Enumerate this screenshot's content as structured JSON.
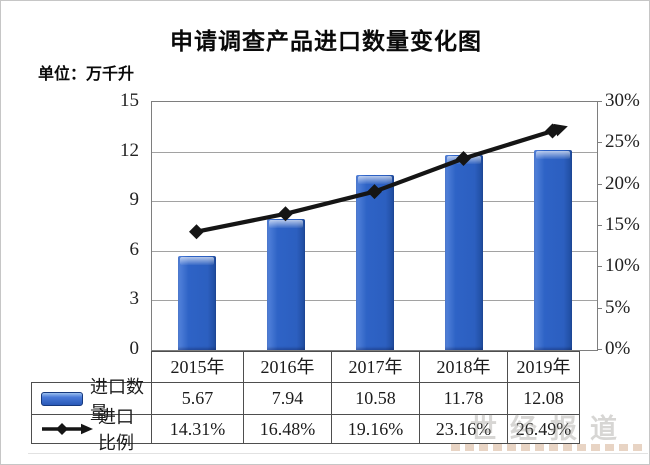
{
  "unit_label": "单位：万千升",
  "watermark_text": "世经报道",
  "chart_data": {
    "type": "combo-bar-line",
    "title": "申请调查产品进口数量变化图",
    "unit": "万千升",
    "categories": [
      "2015年",
      "2016年",
      "2017年",
      "2018年",
      "2019年"
    ],
    "series": [
      {
        "name": "进口数量",
        "type": "bar",
        "axis": "left",
        "values": [
          5.67,
          7.94,
          10.58,
          11.78,
          12.08
        ]
      },
      {
        "name": "进口比例",
        "type": "line",
        "axis": "right",
        "unit": "%",
        "values": [
          14.31,
          16.48,
          19.16,
          23.16,
          26.49
        ]
      }
    ],
    "left_axis": {
      "min": 0,
      "max": 15,
      "ticks_desc": [
        "15",
        "12",
        "9",
        "6",
        "3",
        "0"
      ]
    },
    "right_axis": {
      "min": 0,
      "max": 30,
      "ticks_desc": [
        "30%",
        "25%",
        "20%",
        "15%",
        "10%",
        "5%",
        "0%"
      ]
    },
    "table_rows": [
      {
        "label": "进口数量",
        "cells": [
          "5.67",
          "7.94",
          "10.58",
          "11.78",
          "12.08"
        ]
      },
      {
        "label": "进口比例",
        "cells": [
          "14.31%",
          "16.48%",
          "19.16%",
          "23.16%",
          "26.49%"
        ]
      }
    ],
    "grid": true,
    "legend_position": "table-left",
    "colors": {
      "bar": "#2e63c6",
      "bar_highlight": "#9cc0ef",
      "line": "#151515",
      "gridline": "#a2a2a2"
    }
  }
}
